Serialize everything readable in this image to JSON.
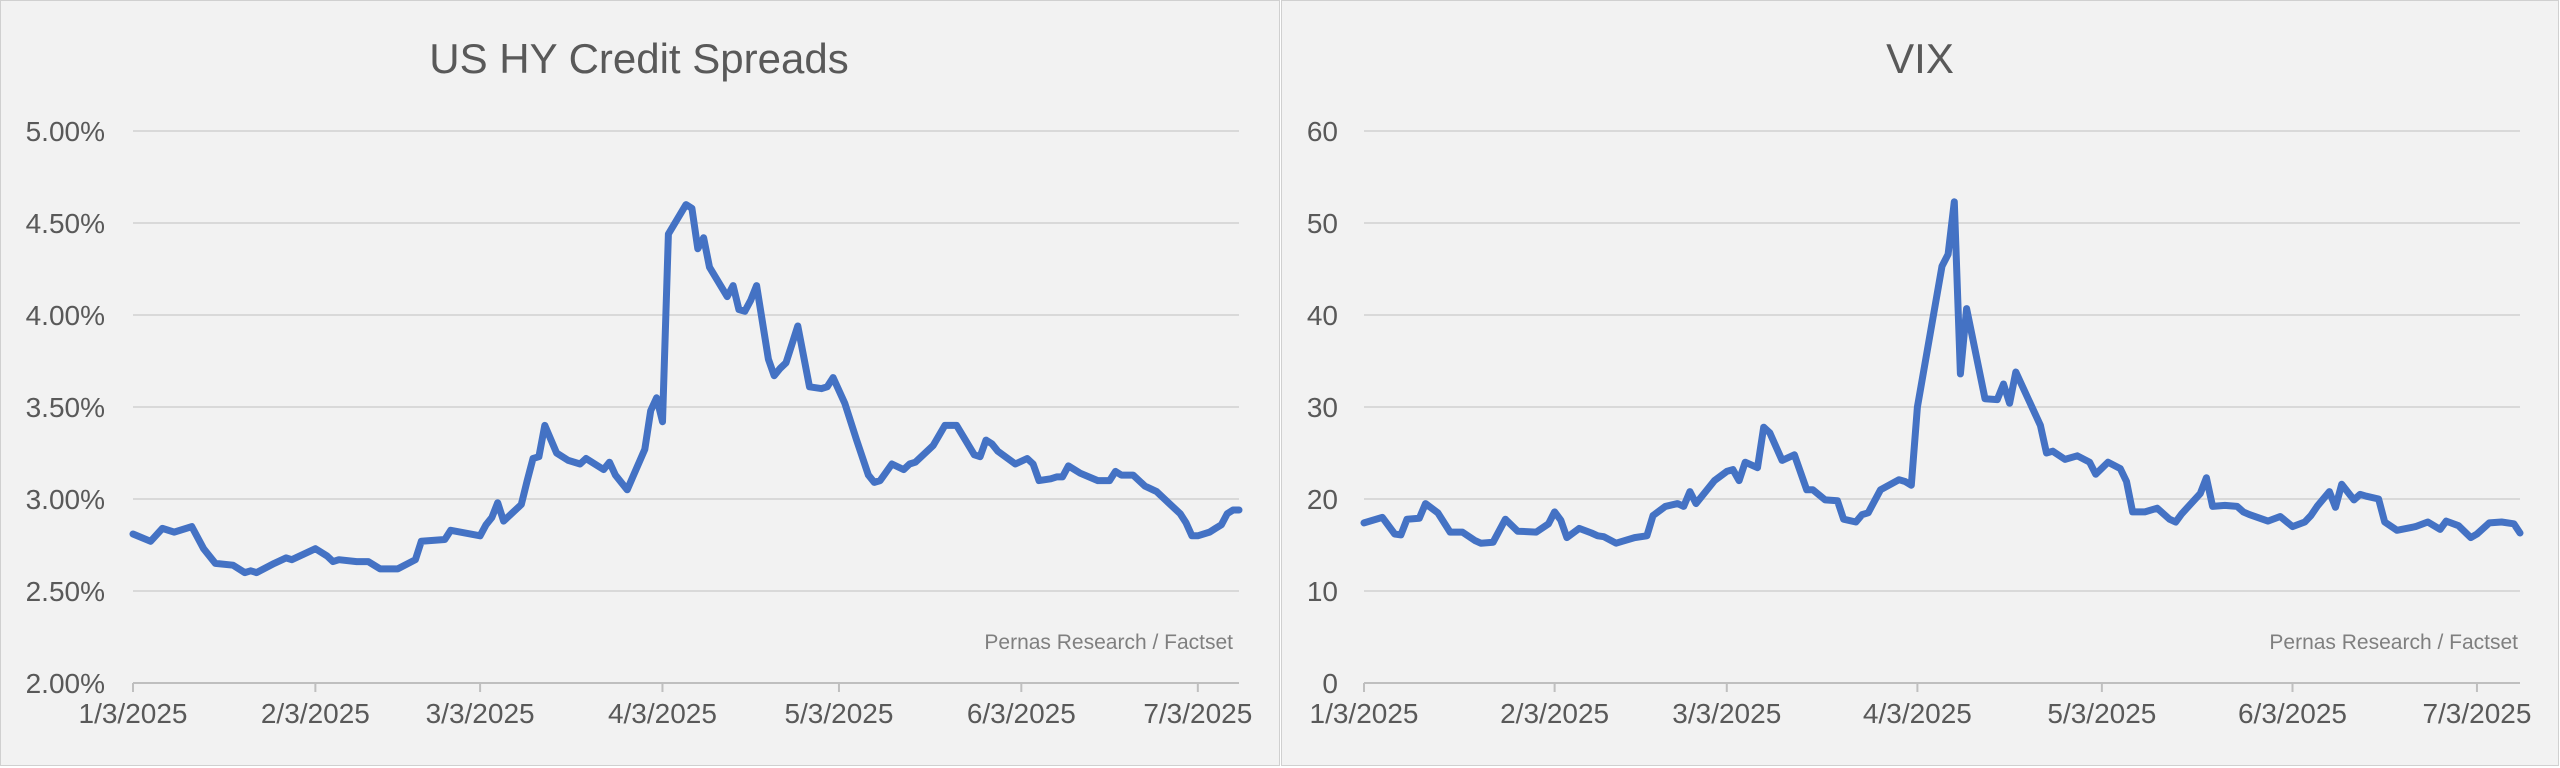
{
  "chart_data": [
    {
      "type": "line",
      "title": "US HY Credit Spreads",
      "source": "Pernas Research / Factset",
      "y_ticks": [
        "2.00%",
        "2.50%",
        "3.00%",
        "3.50%",
        "4.00%",
        "4.50%",
        "5.00%"
      ],
      "ylim": [
        2.0,
        5.0
      ],
      "x_ticks": [
        "1/3/2025",
        "2/3/2025",
        "3/3/2025",
        "4/3/2025",
        "5/3/2025",
        "6/3/2025",
        "7/3/2025"
      ],
      "xlim": [
        "2025-01-03",
        "2025-07-10"
      ],
      "grid": true,
      "color": "#4472c4",
      "series": [
        {
          "x": [
            "2025-01-03",
            "2025-01-06",
            "2025-01-08",
            "2025-01-10",
            "2025-01-13",
            "2025-01-15",
            "2025-01-17",
            "2025-01-20",
            "2025-01-22",
            "2025-01-23",
            "2025-01-24",
            "2025-01-27",
            "2025-01-29",
            "2025-01-30",
            "2025-02-01",
            "2025-02-03",
            "2025-02-05",
            "2025-02-06",
            "2025-02-07",
            "2025-02-10",
            "2025-02-12",
            "2025-02-14",
            "2025-02-17",
            "2025-02-20",
            "2025-02-21",
            "2025-02-25",
            "2025-02-26",
            "2025-03-03",
            "2025-03-04",
            "2025-03-05",
            "2025-03-06",
            "2025-03-07",
            "2025-03-10",
            "2025-03-11",
            "2025-03-12",
            "2025-03-13",
            "2025-03-14",
            "2025-03-16",
            "2025-03-18",
            "2025-03-20",
            "2025-03-21",
            "2025-03-24",
            "2025-03-25",
            "2025-03-26",
            "2025-03-28",
            "2025-03-31",
            "2025-04-01",
            "2025-04-02",
            "2025-04-03",
            "2025-04-04",
            "2025-04-07",
            "2025-04-08",
            "2025-04-09",
            "2025-04-10",
            "2025-04-11",
            "2025-04-14",
            "2025-04-15",
            "2025-04-16",
            "2025-04-17",
            "2025-04-18",
            "2025-04-19",
            "2025-04-21",
            "2025-04-22",
            "2025-04-23",
            "2025-04-24",
            "2025-04-26",
            "2025-04-28",
            "2025-04-30",
            "2025-05-01",
            "2025-05-02",
            "2025-05-04",
            "2025-05-06",
            "2025-05-08",
            "2025-05-09",
            "2025-05-10",
            "2025-05-12",
            "2025-05-14",
            "2025-05-15",
            "2025-05-16",
            "2025-05-19",
            "2025-05-21",
            "2025-05-23",
            "2025-05-26",
            "2025-05-27",
            "2025-05-28",
            "2025-05-29",
            "2025-05-30",
            "2025-06-02",
            "2025-06-04",
            "2025-06-05",
            "2025-06-06",
            "2025-06-08",
            "2025-06-09",
            "2025-06-10",
            "2025-06-11",
            "2025-06-13",
            "2025-06-16",
            "2025-06-18",
            "2025-06-19",
            "2025-06-20",
            "2025-06-22",
            "2025-06-24",
            "2025-06-26",
            "2025-06-28",
            "2025-06-30",
            "2025-07-01",
            "2025-07-02",
            "2025-07-03",
            "2025-07-05",
            "2025-07-06",
            "2025-07-07",
            "2025-07-08",
            "2025-07-09",
            "2025-07-10"
          ],
          "y": [
            2.81,
            2.77,
            2.84,
            2.82,
            2.85,
            2.73,
            2.65,
            2.64,
            2.6,
            2.61,
            2.6,
            2.65,
            2.68,
            2.67,
            2.7,
            2.73,
            2.69,
            2.66,
            2.67,
            2.66,
            2.66,
            2.62,
            2.62,
            2.67,
            2.77,
            2.78,
            2.83,
            2.8,
            2.86,
            2.9,
            2.98,
            2.88,
            2.97,
            3.1,
            3.22,
            3.23,
            3.4,
            3.25,
            3.21,
            3.19,
            3.22,
            3.16,
            3.2,
            3.13,
            3.05,
            3.27,
            3.48,
            3.55,
            3.42,
            4.44,
            4.6,
            4.58,
            4.36,
            4.42,
            4.26,
            4.1,
            4.16,
            4.03,
            4.02,
            4.08,
            4.16,
            3.76,
            3.67,
            3.71,
            3.74,
            3.94,
            3.61,
            3.6,
            3.61,
            3.66,
            3.52,
            3.32,
            3.13,
            3.09,
            3.1,
            3.19,
            3.16,
            3.19,
            3.2,
            3.29,
            3.4,
            3.4,
            3.24,
            3.23,
            3.32,
            3.3,
            3.26,
            3.19,
            3.22,
            3.19,
            3.1,
            3.11,
            3.12,
            3.12,
            3.18,
            3.14,
            3.1,
            3.1,
            3.15,
            3.13,
            3.13,
            3.07,
            3.04,
            2.98,
            2.92,
            2.87,
            2.8,
            2.8,
            2.82,
            2.84,
            2.86,
            2.92,
            2.94,
            2.94
          ]
        }
      ]
    },
    {
      "type": "line",
      "title": "VIX",
      "source": "Pernas Research / Factset",
      "y_ticks": [
        "0",
        "10",
        "20",
        "30",
        "40",
        "50",
        "60"
      ],
      "ylim": [
        0,
        60
      ],
      "x_ticks": [
        "1/3/2025",
        "2/3/2025",
        "3/3/2025",
        "4/3/2025",
        "5/3/2025",
        "6/3/2025",
        "7/3/2025"
      ],
      "xlim": [
        "2025-01-03",
        "2025-07-10"
      ],
      "grid": true,
      "color": "#4472c4",
      "series": [
        {
          "x": [
            "2025-01-03",
            "2025-01-06",
            "2025-01-08",
            "2025-01-09",
            "2025-01-10",
            "2025-01-12",
            "2025-01-13",
            "2025-01-15",
            "2025-01-17",
            "2025-01-19",
            "2025-01-21",
            "2025-01-22",
            "2025-01-24",
            "2025-01-26",
            "2025-01-28",
            "2025-01-31",
            "2025-02-02",
            "2025-02-03",
            "2025-02-04",
            "2025-02-05",
            "2025-02-07",
            "2025-02-09",
            "2025-02-10",
            "2025-02-11",
            "2025-02-13",
            "2025-02-14",
            "2025-02-16",
            "2025-02-18",
            "2025-02-19",
            "2025-02-21",
            "2025-02-23",
            "2025-02-24",
            "2025-02-25",
            "2025-02-26",
            "2025-03-01",
            "2025-03-03",
            "2025-03-04",
            "2025-03-05",
            "2025-03-06",
            "2025-03-08",
            "2025-03-09",
            "2025-03-10",
            "2025-03-12",
            "2025-03-14",
            "2025-03-16",
            "2025-03-17",
            "2025-03-19",
            "2025-03-21",
            "2025-03-22",
            "2025-03-24",
            "2025-03-25",
            "2025-03-26",
            "2025-03-28",
            "2025-03-31",
            "2025-04-01",
            "2025-04-02",
            "2025-04-03",
            "2025-04-07",
            "2025-04-08",
            "2025-04-09",
            "2025-04-10",
            "2025-04-11",
            "2025-04-14",
            "2025-04-16",
            "2025-04-17",
            "2025-04-18",
            "2025-04-19",
            "2025-04-21",
            "2025-04-23",
            "2025-04-24",
            "2025-04-25",
            "2025-04-27",
            "2025-04-29",
            "2025-05-01",
            "2025-05-02",
            "2025-05-04",
            "2025-05-06",
            "2025-05-07",
            "2025-05-08",
            "2025-05-10",
            "2025-05-12",
            "2025-05-14",
            "2025-05-15",
            "2025-05-16",
            "2025-05-19",
            "2025-05-20",
            "2025-05-21",
            "2025-05-23",
            "2025-05-25",
            "2025-05-26",
            "2025-05-27",
            "2025-05-30",
            "2025-06-01",
            "2025-06-03",
            "2025-06-05",
            "2025-06-06",
            "2025-06-07",
            "2025-06-09",
            "2025-06-10",
            "2025-06-11",
            "2025-06-13",
            "2025-06-14",
            "2025-06-15",
            "2025-06-17",
            "2025-06-18",
            "2025-06-20",
            "2025-06-23",
            "2025-06-25",
            "2025-06-27",
            "2025-06-28",
            "2025-06-30",
            "2025-07-02",
            "2025-07-03",
            "2025-07-05",
            "2025-07-07",
            "2025-07-09",
            "2025-07-10"
          ],
          "y": [
            17.4,
            18.0,
            16.2,
            16.1,
            17.8,
            17.9,
            19.5,
            18.5,
            16.4,
            16.4,
            15.5,
            15.2,
            15.3,
            17.8,
            16.5,
            16.4,
            17.3,
            18.6,
            17.7,
            15.8,
            16.8,
            16.3,
            16.0,
            15.9,
            15.2,
            15.4,
            15.8,
            16.0,
            18.2,
            19.2,
            19.5,
            19.2,
            20.8,
            19.5,
            22.0,
            23.0,
            23.2,
            22.0,
            24.0,
            23.4,
            27.8,
            27.2,
            24.2,
            24.8,
            21.0,
            21.0,
            19.9,
            19.8,
            17.8,
            17.5,
            18.3,
            18.5,
            21.0,
            22.1,
            21.9,
            21.5,
            30.0,
            45.3,
            46.6,
            52.3,
            33.6,
            40.7,
            30.9,
            30.8,
            32.5,
            30.4,
            33.8,
            30.9,
            28.0,
            25.0,
            25.2,
            24.3,
            24.7,
            24.0,
            22.7,
            24.0,
            23.3,
            21.9,
            18.6,
            18.6,
            19.0,
            17.8,
            17.5,
            18.4,
            20.6,
            22.3,
            19.2,
            19.3,
            19.2,
            18.6,
            18.3,
            17.6,
            18.1,
            17.0,
            17.5,
            18.2,
            19.2,
            20.8,
            19.1,
            21.6,
            19.9,
            20.5,
            20.3,
            20.0,
            17.5,
            16.6,
            17.0,
            17.5,
            16.7,
            17.6,
            17.1,
            15.8,
            16.2,
            17.4,
            17.5,
            17.3,
            16.3
          ]
        }
      ]
    }
  ]
}
